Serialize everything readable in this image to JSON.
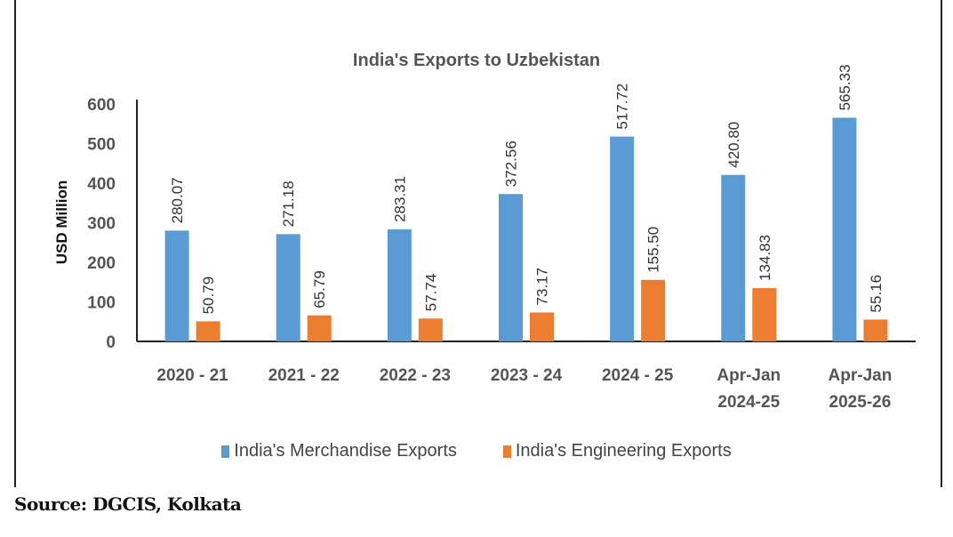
{
  "chart_data": {
    "type": "bar",
    "title": "India's Exports to Uzbekistan",
    "xlabel": "",
    "ylabel": "USD Million",
    "ylim": [
      0,
      600
    ],
    "yticks": [
      0,
      100,
      200,
      300,
      400,
      500,
      600
    ],
    "categories": [
      [
        "2020 - 21"
      ],
      [
        "2021 - 22"
      ],
      [
        "2022 - 23"
      ],
      [
        "2023 - 24"
      ],
      [
        "2024 - 25"
      ],
      [
        "Apr-Jan",
        "2024-25"
      ],
      [
        "Apr-Jan",
        "2025-26"
      ]
    ],
    "series": [
      {
        "name": "India's Merchandise Exports",
        "color": "#5b9bd5",
        "values": [
          280.07,
          271.18,
          283.31,
          372.56,
          517.72,
          420.8,
          565.33
        ],
        "labels": [
          "280.07",
          "271.18",
          "283.31",
          "372.56",
          "517.72",
          "420.80",
          "565.33"
        ]
      },
      {
        "name": "India's Engineering Exports",
        "color": "#ed7d31",
        "values": [
          50.79,
          65.79,
          57.74,
          73.17,
          155.5,
          134.83,
          55.16
        ],
        "labels": [
          "50.79",
          "65.79",
          "57.74",
          "73.17",
          "155.50",
          "134.83",
          "55.16"
        ]
      }
    ],
    "legend_position": "bottom",
    "grid": false
  },
  "source": "Source: DGCIS, Kolkata"
}
